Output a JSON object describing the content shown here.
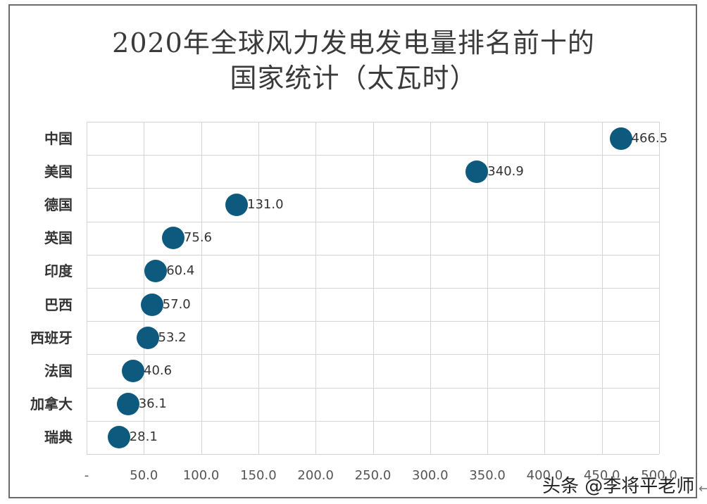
{
  "title_line1": "2020年全球风力发电发电量排名前十的",
  "title_line2": "国家统计（太瓦时）",
  "watermark": "头条 @李将平老师",
  "colors": {
    "marker": "#0e5a7e",
    "grid": "#d4d4d4",
    "text": "#333333"
  },
  "x_ticks": [
    "-",
    "50.0",
    "100.0",
    "150.0",
    "200.0",
    "250.0",
    "300.0",
    "350.0",
    "400.0",
    "450.0",
    "500.0"
  ],
  "rows": [
    {
      "label": "中国",
      "value": "466.5"
    },
    {
      "label": "美国",
      "value": "340.9"
    },
    {
      "label": "德国",
      "value": "131.0"
    },
    {
      "label": "英国",
      "value": "75.6"
    },
    {
      "label": "印度",
      "value": "60.4"
    },
    {
      "label": "巴西",
      "value": "57.0"
    },
    {
      "label": "西班牙",
      "value": "53.2"
    },
    {
      "label": "法国",
      "value": "40.6"
    },
    {
      "label": "加拿大",
      "value": "36.1"
    },
    {
      "label": "瑞典",
      "value": "28.1"
    }
  ],
  "chart_data": {
    "type": "scatter",
    "title": "2020年全球风力发电发电量排名前十的国家统计（太瓦时）",
    "categories": [
      "中国",
      "美国",
      "德国",
      "英国",
      "印度",
      "巴西",
      "西班牙",
      "法国",
      "加拿大",
      "瑞典"
    ],
    "values": [
      466.5,
      340.9,
      131.0,
      75.6,
      60.4,
      57.0,
      53.2,
      40.6,
      36.1,
      28.1
    ],
    "xlabel": "",
    "ylabel": "",
    "xlim": [
      0,
      500
    ],
    "x_tick_labels": [
      "-",
      "50.0",
      "100.0",
      "150.0",
      "200.0",
      "250.0",
      "300.0",
      "350.0",
      "400.0",
      "450.0",
      "500.0"
    ],
    "grid": true,
    "legend": "none",
    "data_labels": true
  }
}
